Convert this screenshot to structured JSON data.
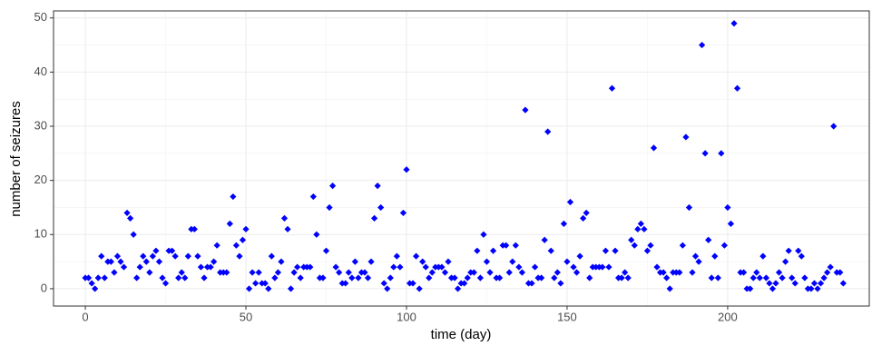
{
  "chart_data": {
    "type": "scatter",
    "x_label": "time (day)",
    "y_label": "number of seizures",
    "x": [
      0,
      1,
      2,
      3,
      4,
      5,
      6,
      7,
      8,
      9,
      10,
      11,
      12,
      13,
      14,
      15,
      16,
      17,
      18,
      19,
      20,
      21,
      22,
      23,
      24,
      25,
      26,
      27,
      28,
      29,
      30,
      31,
      32,
      33,
      34,
      35,
      36,
      37,
      38,
      39,
      40,
      41,
      42,
      43,
      44,
      45,
      46,
      47,
      48,
      49,
      50,
      51,
      52,
      53,
      54,
      55,
      56,
      57,
      58,
      59,
      60,
      61,
      62,
      63,
      64,
      65,
      66,
      67,
      68,
      69,
      70,
      71,
      72,
      73,
      74,
      75,
      76,
      77,
      78,
      79,
      80,
      81,
      82,
      83,
      84,
      85,
      86,
      87,
      88,
      89,
      90,
      91,
      92,
      93,
      94,
      95,
      96,
      97,
      98,
      99,
      100,
      101,
      102,
      103,
      104,
      105,
      106,
      107,
      108,
      109,
      110,
      111,
      112,
      113,
      114,
      115,
      116,
      117,
      118,
      119,
      120,
      121,
      122,
      123,
      124,
      125,
      126,
      127,
      128,
      129,
      130,
      131,
      132,
      133,
      134,
      135,
      136,
      137,
      138,
      139,
      140,
      141,
      142,
      143,
      144,
      145,
      146,
      147,
      148,
      149,
      150,
      151,
      152,
      153,
      154,
      155,
      156,
      157,
      158,
      159,
      160,
      161,
      162,
      163,
      164,
      165,
      166,
      167,
      168,
      169,
      170,
      171,
      172,
      173,
      174,
      175,
      176,
      177,
      178,
      179,
      180,
      181,
      182,
      183,
      184,
      185,
      186,
      187,
      188,
      189,
      190,
      191,
      192,
      193,
      194,
      195,
      196,
      197,
      198,
      199,
      200,
      201,
      202,
      203,
      204,
      205,
      206,
      207,
      208,
      209,
      210,
      211,
      212,
      213,
      214,
      215,
      216,
      217,
      218,
      219,
      220,
      221,
      222,
      223,
      224,
      225,
      226,
      227,
      228,
      229,
      230,
      231,
      232,
      233,
      234,
      235,
      236
    ],
    "values": [
      2,
      2,
      1,
      0,
      2,
      6,
      2,
      5,
      5,
      3,
      6,
      5,
      4,
      14,
      13,
      10,
      2,
      4,
      6,
      5,
      3,
      6,
      7,
      5,
      2,
      1,
      7,
      7,
      6,
      2,
      3,
      2,
      6,
      11,
      11,
      6,
      4,
      2,
      4,
      4,
      5,
      8,
      3,
      3,
      3,
      12,
      17,
      8,
      6,
      9,
      11,
      0,
      3,
      1,
      3,
      1,
      1,
      0,
      6,
      2,
      3,
      5,
      13,
      11,
      0,
      3,
      4,
      2,
      4,
      4,
      4,
      17,
      10,
      2,
      2,
      7,
      15,
      19,
      4,
      3,
      1,
      1,
      3,
      2,
      5,
      2,
      3,
      3,
      2,
      5,
      13,
      19,
      15,
      1,
      0,
      2,
      4,
      6,
      4,
      14,
      22,
      1,
      1,
      6,
      0,
      5,
      4,
      2,
      3,
      4,
      4,
      4,
      3,
      5,
      2,
      2,
      0,
      1,
      1,
      2,
      3,
      3,
      7,
      2,
      10,
      5,
      3,
      7,
      2,
      2,
      8,
      8,
      3,
      5,
      8,
      4,
      3,
      33,
      1,
      1,
      4,
      2,
      2,
      9,
      29,
      7,
      2,
      3,
      1,
      12,
      5,
      16,
      4,
      3,
      6,
      13,
      14,
      2,
      4,
      4,
      4,
      4,
      7,
      4,
      37,
      7,
      2,
      2,
      3,
      2,
      9,
      8,
      11,
      12,
      11,
      7,
      8,
      26,
      4,
      3,
      3,
      2,
      0,
      3,
      3,
      3,
      8,
      28,
      15,
      3,
      6,
      5,
      45,
      25,
      9,
      2,
      6,
      2,
      25,
      8,
      15,
      12,
      49,
      37,
      3,
      3,
      0,
      0,
      2,
      3,
      2,
      6,
      2,
      1,
      0,
      1,
      3,
      2,
      5,
      7,
      2,
      1,
      7,
      6,
      2,
      0,
      0,
      1,
      0,
      1,
      2,
      3,
      4,
      30,
      3,
      3,
      1
    ],
    "color": "#0000ff",
    "xlim": [
      -9.9,
      244.1
    ],
    "xticks": [
      0,
      50,
      100,
      150,
      200
    ],
    "ylim": [
      -3.2,
      51.3
    ],
    "yticks": [
      0,
      10,
      20,
      30,
      40,
      50
    ],
    "grid": true
  }
}
